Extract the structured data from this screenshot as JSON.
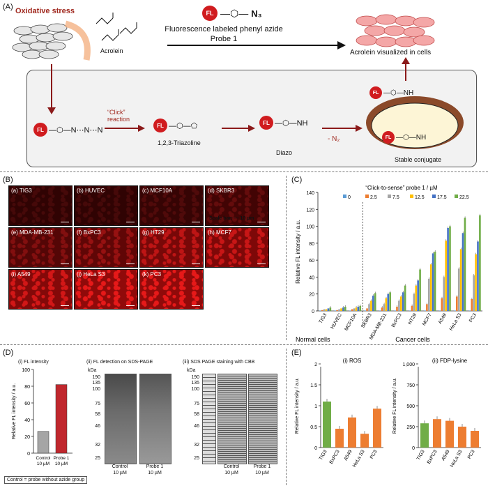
{
  "panelA": {
    "label": "(A)",
    "oxidative_stress": "Oxidative stress",
    "acrolein": "Acrolein",
    "probe_line1": "Fluorescence labeled phenyl azide",
    "probe_line2": "Probe 1",
    "visualized": "Acrolein visualized in cells",
    "click": "“Click”",
    "reaction": "reaction",
    "triazoline": "1,2,3-Triazoline",
    "diazo": "Diazo",
    "minus_n2": "- N₂",
    "stable": "Stable conjugate",
    "fl": "FL",
    "azide": "N₃"
  },
  "panelB": {
    "label": "(B)",
    "scale_bar": "Scale bar; — 10 µm",
    "images": [
      {
        "tag": "(a) TIG3",
        "intensity": 0.15
      },
      {
        "tag": "(b) HUVEC",
        "intensity": 0.15
      },
      {
        "tag": "(c) MCF10A",
        "intensity": 0.2
      },
      {
        "tag": "(d) SKBR3",
        "intensity": 0.3
      },
      {
        "tag": "(e) MDA-MB-231",
        "intensity": 0.45
      },
      {
        "tag": "(f) BxPC3",
        "intensity": 0.55
      },
      {
        "tag": "(g) HT29",
        "intensity": 0.75
      },
      {
        "tag": "(h) MCF7",
        "intensity": 0.8
      },
      {
        "tag": "(i) A549",
        "intensity": 0.85
      },
      {
        "tag": "(j) HeLa S3",
        "intensity": 0.95
      },
      {
        "tag": "(k) PC3",
        "intensity": 0.95
      }
    ]
  },
  "panelC": {
    "label": "(C)",
    "normal_cells": "Normal cells",
    "cancer_cells": "Cancer cells"
  },
  "panelD": {
    "label": "(D)",
    "sub1": "(i) FL intensity",
    "sub2": "(ii) FL detection on SDS-PAGE",
    "sub3": "(iii) SDS PAGE staining with CBB",
    "kda": "kDa",
    "markers": [
      "190",
      "135",
      "100",
      "75",
      "58",
      "46",
      "32",
      "25"
    ],
    "lane_control": "Control",
    "lane_probe": "Probe 1",
    "lane_conc": "10 µM",
    "note": "Control = probe without azide group"
  },
  "panelE": {
    "label": "(E)"
  },
  "chart_data": [
    {
      "type": "bar",
      "title": "“Click-to-sense” probe 1 / µM",
      "ylabel": "Relative FL intensity / a.u.",
      "ylim": [
        0,
        140
      ],
      "yticks": [
        0,
        20,
        40,
        60,
        80,
        100,
        120,
        140
      ],
      "grid": false,
      "legend_position": "top",
      "categories": [
        "TIG3",
        "HUVEC",
        "MCF10A",
        "SKBR3",
        "MDA-MB-231",
        "BxPC3",
        "HT29",
        "MCF7",
        "A549",
        "HeLa S3",
        "PC3"
      ],
      "series": [
        {
          "name": "0",
          "color": "#5b9bd5",
          "values": [
            0.5,
            0.5,
            0.5,
            0.5,
            0.5,
            0.5,
            0.5,
            0.5,
            0.5,
            0.5,
            0.5
          ]
        },
        {
          "name": "2.5",
          "color": "#ed7d31",
          "values": [
            1,
            1,
            2,
            3,
            4,
            5,
            6,
            8,
            15,
            17,
            14
          ]
        },
        {
          "name": "7.5",
          "color": "#a5a5a5",
          "values": [
            2,
            2,
            3,
            8,
            8,
            12,
            20,
            38,
            40,
            50,
            42
          ]
        },
        {
          "name": "12.5",
          "color": "#ffc000",
          "values": [
            2,
            3,
            4,
            12,
            15,
            17,
            30,
            55,
            83,
            73,
            67
          ]
        },
        {
          "name": "17.5",
          "color": "#4472c4",
          "values": [
            3,
            4,
            5,
            18,
            20,
            22,
            36,
            68,
            98,
            92,
            82
          ]
        },
        {
          "name": "22.5",
          "color": "#70ad47",
          "values": [
            4,
            5,
            6,
            21,
            22,
            30,
            49,
            70,
            100,
            110,
            113
          ]
        }
      ]
    },
    {
      "type": "bar",
      "title": "(i) FL intensity",
      "ylabel": "Relative FL intensity / a.u.",
      "ylim": [
        0,
        100
      ],
      "yticks": [
        0,
        20,
        40,
        60,
        80,
        100
      ],
      "categories": [
        "Control\n10 µM",
        "Probe 1\n10 µM"
      ],
      "values": [
        26,
        82
      ],
      "colors": [
        "#a5a5a5",
        "#c0272d"
      ]
    },
    {
      "type": "bar",
      "title": "(i) ROS",
      "ylabel": "Relative FL intensity / a.u.",
      "ylim": [
        0,
        2.0
      ],
      "yticks": [
        0,
        0.5,
        1.0,
        1.5,
        2.0
      ],
      "categories": [
        "TIG3",
        "BxPC3",
        "A549",
        "HeLa S3",
        "PC3"
      ],
      "values": [
        1.1,
        0.45,
        0.72,
        0.33,
        0.93
      ],
      "colors": [
        "#70ad47",
        "#ed7d31",
        "#ed7d31",
        "#ed7d31",
        "#ed7d31"
      ]
    },
    {
      "type": "bar",
      "title": "(ii) FDP-lysine",
      "ylabel": "Relative FL intensity / a.u.",
      "ylim": [
        0,
        1000
      ],
      "yticks": [
        0,
        250,
        500,
        750,
        1000
      ],
      "yticklabels": [
        "0",
        "250",
        "500",
        "750",
        "1,000"
      ],
      "categories": [
        "TIG3",
        "BxPC3",
        "A549",
        "HeLa S3",
        "PC3"
      ],
      "values": [
        290,
        340,
        320,
        250,
        200
      ],
      "colors": [
        "#70ad47",
        "#ed7d31",
        "#ed7d31",
        "#ed7d31",
        "#ed7d31"
      ]
    }
  ]
}
